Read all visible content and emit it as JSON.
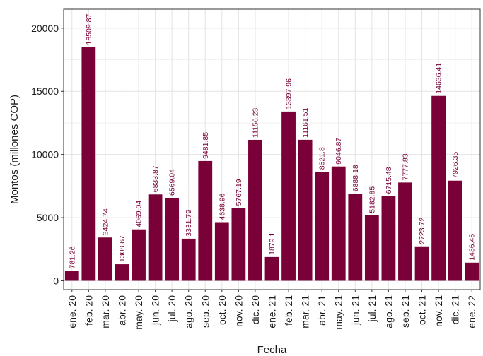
{
  "colors": {
    "bar": "#7a0038",
    "label": "#7a0038",
    "grid_major": "#e3e3e3",
    "grid_minor": "#f1f1f1",
    "frame": "#333333"
  },
  "chart_data": {
    "type": "bar",
    "xlabel": "Fecha",
    "ylabel": "Montos (millones COP)",
    "ylim": [
      -700,
      21500
    ],
    "yticks": [
      0,
      5000,
      10000,
      15000,
      20000
    ],
    "grid": true,
    "categories": [
      "ene. 20",
      "feb. 20",
      "mar. 20",
      "abr. 20",
      "may. 20",
      "jun. 20",
      "jul. 20",
      "ago. 20",
      "sep. 20",
      "oct. 20",
      "nov. 20",
      "dic. 20",
      "ene. 21",
      "feb. 21",
      "mar. 21",
      "abr. 21",
      "may. 21",
      "jun. 21",
      "jul. 21",
      "ago. 21",
      "sep. 21",
      "oct. 21",
      "nov. 21",
      "dic. 21",
      "ene. 22"
    ],
    "values": [
      781.26,
      18509.87,
      3424.74,
      1308.67,
      4069.04,
      6833.87,
      6569.04,
      3331.79,
      9481.85,
      4638.96,
      5767.19,
      11156.23,
      1879.1,
      13397.96,
      11161.51,
      8621.8,
      9046.87,
      6888.18,
      5182.85,
      6715.48,
      7777.83,
      2723.72,
      14636.41,
      7926.35,
      1436.45
    ],
    "data_labels": [
      "781.26",
      "18509.87",
      "3424.74",
      "1308.67",
      "4069.04",
      "6833.87",
      "6569.04",
      "3331.79",
      "9481.85",
      "4638.96",
      "5767.19",
      "11156.23",
      "1879.1",
      "13397.96",
      "11161.51",
      "8621.8",
      "9046.87",
      "6888.18",
      "5182.85",
      "6715.48",
      "7777.83",
      "2723.72",
      "14636.41",
      "7926.35",
      "1436.45"
    ]
  }
}
